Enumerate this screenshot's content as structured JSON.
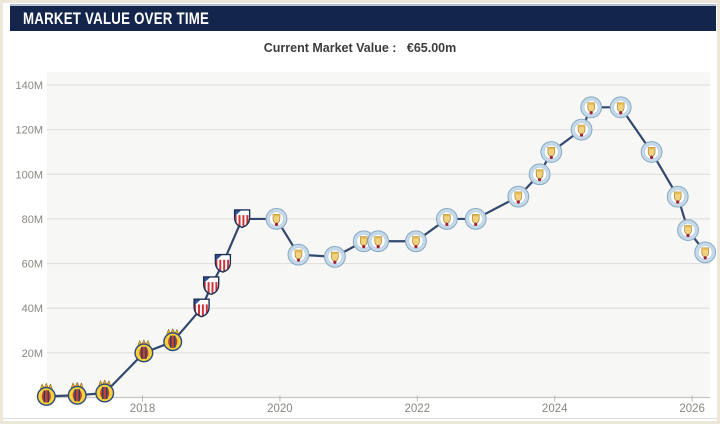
{
  "header": {
    "title": "MARKET VALUE OVER TIME"
  },
  "subtitle": {
    "label": "Current Market Value :",
    "value": "€65.00m"
  },
  "colors": {
    "header_bg": "#14254c",
    "header_text": "#ffffff",
    "line": "#33486e",
    "plot_bg": "#f7f7f5",
    "gridline": "#dcdcdc",
    "axis_line": "#c6c6c4",
    "axis_text": "#8a8781",
    "villarreal_yellow": "#f6d13b",
    "atletico_red": "#cf3339",
    "mancity_blue": "#c6d9e8"
  },
  "chart_data": {
    "type": "line",
    "title": "Market value over time",
    "currency": "€",
    "unit": "million",
    "grid": true,
    "legend": "none",
    "ylim": [
      0,
      140
    ],
    "yticks": [
      20,
      40,
      60,
      80,
      100,
      120,
      140
    ],
    "ytick_labels": [
      "20M",
      "40M",
      "60M",
      "80M",
      "100M",
      "120M",
      "140M"
    ],
    "xticks": [
      2018,
      2020,
      2022,
      2024,
      2026
    ],
    "xtick_labels": [
      "2018",
      "2020",
      "2022",
      "2024",
      "2026"
    ],
    "xlim": [
      2016.61,
      2026.26
    ],
    "series": [
      {
        "name": "Market value",
        "points": [
          {
            "date": "Aug 2016",
            "x": 2016.6,
            "value": 0.5,
            "club": "villarreal"
          },
          {
            "date": "Jan 2017",
            "x": 2017.05,
            "value": 1,
            "club": "villarreal"
          },
          {
            "date": "Jun 2017",
            "x": 2017.45,
            "value": 2,
            "club": "villarreal"
          },
          {
            "date": "Jan 2018",
            "x": 2018.02,
            "value": 20,
            "club": "villarreal"
          },
          {
            "date": "Jun 2018",
            "x": 2018.44,
            "value": 25,
            "club": "villarreal"
          },
          {
            "date": "Nov 2018",
            "x": 2018.86,
            "value": 40,
            "club": "atletico"
          },
          {
            "date": "Jan 2019",
            "x": 2019.0,
            "value": 50,
            "club": "atletico"
          },
          {
            "date": "Mar 2019",
            "x": 2019.17,
            "value": 60,
            "club": "atletico"
          },
          {
            "date": "Jun 2019",
            "x": 2019.45,
            "value": 80,
            "club": "atletico"
          },
          {
            "date": "Dec 2019",
            "x": 2019.95,
            "value": 80,
            "club": "mancity"
          },
          {
            "date": "Apr 2020",
            "x": 2020.27,
            "value": 64,
            "club": "mancity"
          },
          {
            "date": "Oct 2020",
            "x": 2020.8,
            "value": 63,
            "club": "mancity"
          },
          {
            "date": "Mar 2021",
            "x": 2021.22,
            "value": 70,
            "club": "mancity"
          },
          {
            "date": "Jun 2021",
            "x": 2021.43,
            "value": 70,
            "club": "mancity"
          },
          {
            "date": "Dec 2021",
            "x": 2021.98,
            "value": 70,
            "club": "mancity"
          },
          {
            "date": "Jun 2022",
            "x": 2022.43,
            "value": 80,
            "club": "mancity"
          },
          {
            "date": "Nov 2022",
            "x": 2022.85,
            "value": 80,
            "club": "mancity"
          },
          {
            "date": "Jun 2023",
            "x": 2023.47,
            "value": 90,
            "club": "mancity"
          },
          {
            "date": "Oct 2023",
            "x": 2023.78,
            "value": 100,
            "club": "mancity"
          },
          {
            "date": "Dec 2023",
            "x": 2023.95,
            "value": 110,
            "club": "mancity"
          },
          {
            "date": "May 2024",
            "x": 2024.39,
            "value": 120,
            "club": "mancity"
          },
          {
            "date": "Jul 2024",
            "x": 2024.53,
            "value": 130,
            "club": "mancity"
          },
          {
            "date": "Dec 2024",
            "x": 2024.96,
            "value": 130,
            "club": "mancity"
          },
          {
            "date": "Jun 2025",
            "x": 2025.41,
            "value": 110,
            "club": "mancity"
          },
          {
            "date": "Oct 2025",
            "x": 2025.79,
            "value": 90,
            "club": "mancity"
          },
          {
            "date": "Dec 2025",
            "x": 2025.94,
            "value": 75,
            "club": "mancity"
          },
          {
            "date": "Mar 2026",
            "x": 2026.19,
            "value": 65,
            "club": "mancity"
          }
        ]
      }
    ]
  }
}
